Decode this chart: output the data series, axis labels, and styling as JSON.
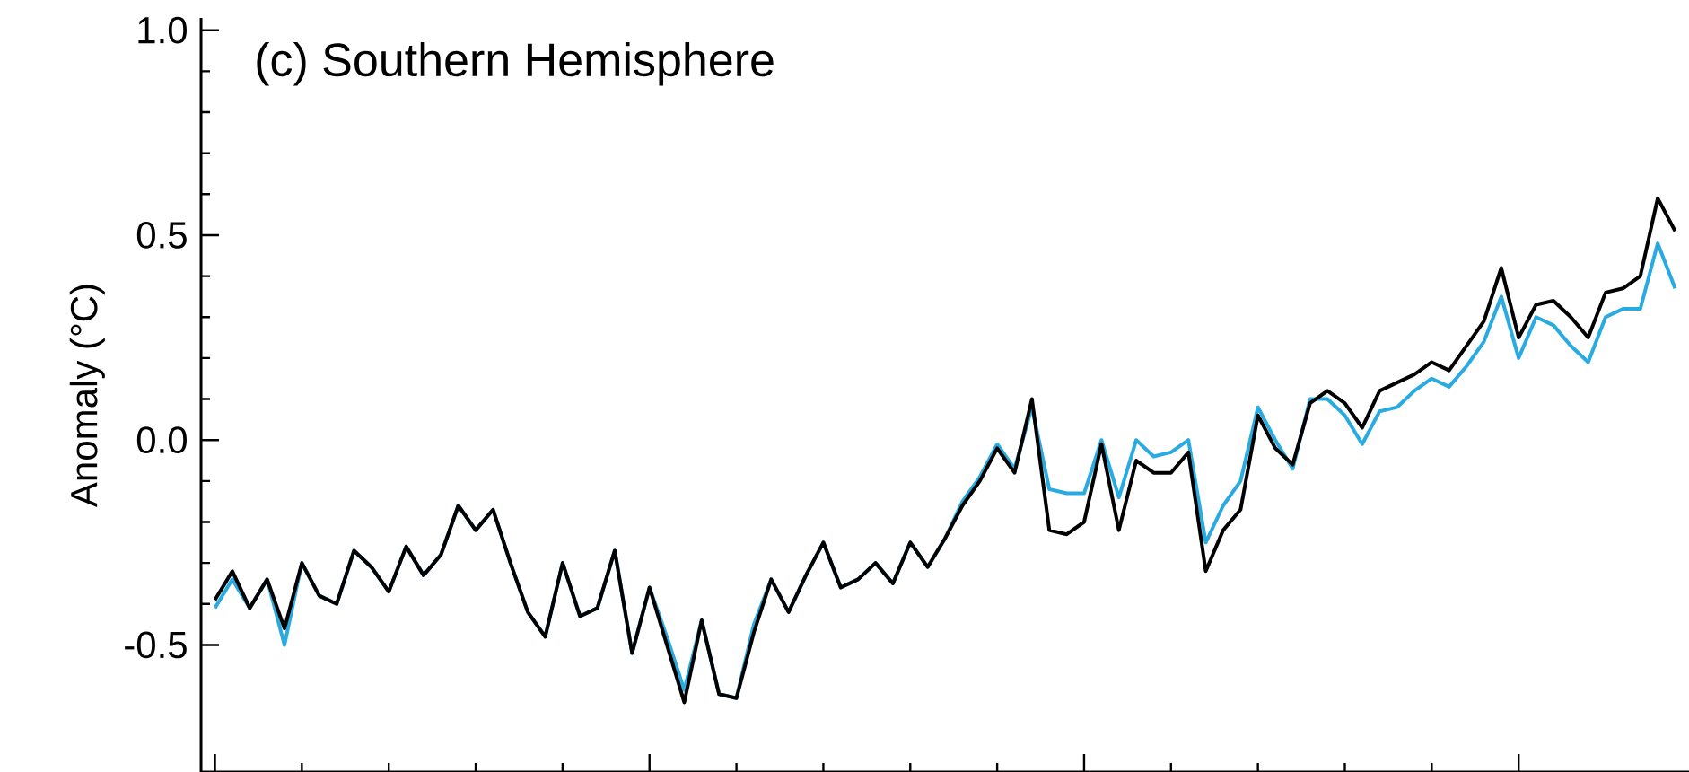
{
  "chart_data": {
    "type": "line",
    "title": "(c) Southern Hemisphere",
    "ylabel": "Anomaly (°C)",
    "categories": [
      null,
      null,
      null,
      null,
      null,
      null,
      null,
      null,
      null,
      null,
      null,
      null,
      null,
      null,
      null,
      null,
      null,
      null,
      null,
      null,
      null,
      null,
      null,
      null,
      null,
      null,
      null,
      null,
      null,
      null,
      null,
      null,
      null,
      null,
      null,
      null,
      null,
      null,
      null,
      null,
      null,
      null,
      null,
      null,
      null,
      null,
      null,
      null,
      null,
      null,
      null,
      null,
      null,
      null,
      null,
      null,
      null,
      null,
      null,
      null,
      null,
      null,
      null,
      null,
      null,
      null,
      null,
      null,
      null,
      null,
      null,
      null,
      null,
      null,
      null,
      null,
      null,
      null,
      null,
      null,
      null,
      null,
      null,
      null,
      null
    ],
    "ylim": [
      -0.81,
      1.03
    ],
    "yticks": [
      {
        "value": -0.5,
        "label": "-0.5"
      },
      {
        "value": 0,
        "label": "0.0"
      },
      {
        "value": 0.5,
        "label": "0.5"
      },
      {
        "value": 1.0,
        "label": "1.0"
      }
    ],
    "grid": false,
    "marker": "none",
    "line_style": "solid",
    "series": [
      {
        "color": "#29abe2",
        "values": [
          -0.41,
          -0.34,
          -0.41,
          -0.34,
          -0.5,
          -0.3,
          -0.38,
          -0.4,
          -0.27,
          -0.31,
          -0.37,
          -0.26,
          -0.33,
          -0.28,
          -0.16,
          -0.22,
          -0.17,
          -0.3,
          -0.42,
          -0.48,
          -0.3,
          -0.43,
          -0.41,
          -0.27,
          -0.52,
          -0.36,
          -0.48,
          -0.61,
          -0.44,
          -0.62,
          -0.63,
          -0.45,
          -0.34,
          -0.42,
          -0.33,
          -0.25,
          -0.36,
          -0.34,
          -0.3,
          -0.35,
          -0.25,
          -0.31,
          -0.24,
          -0.15,
          -0.09,
          -0.01,
          -0.07,
          0.08,
          -0.12,
          -0.13,
          -0.13,
          0.0,
          -0.14,
          0.0,
          -0.04,
          -0.03,
          0.0,
          -0.25,
          -0.16,
          -0.1,
          0.08,
          0.0,
          -0.07,
          0.1,
          0.1,
          0.06,
          -0.01,
          0.07,
          0.08,
          0.12,
          0.15,
          0.13,
          0.18,
          0.24,
          0.35,
          0.2,
          0.3,
          0.28,
          0.23,
          0.19,
          0.3,
          0.32,
          0.32,
          0.48,
          0.37
        ]
      },
      {
        "color": "#000000",
        "values": [
          -0.39,
          -0.32,
          -0.41,
          -0.34,
          -0.46,
          -0.3,
          -0.38,
          -0.4,
          -0.27,
          -0.31,
          -0.37,
          -0.26,
          -0.33,
          -0.28,
          -0.16,
          -0.22,
          -0.17,
          -0.3,
          -0.42,
          -0.48,
          -0.3,
          -0.43,
          -0.41,
          -0.27,
          -0.52,
          -0.36,
          -0.5,
          -0.64,
          -0.44,
          -0.62,
          -0.63,
          -0.47,
          -0.34,
          -0.42,
          -0.33,
          -0.25,
          -0.36,
          -0.34,
          -0.3,
          -0.35,
          -0.25,
          -0.31,
          -0.24,
          -0.16,
          -0.1,
          -0.02,
          -0.08,
          0.1,
          -0.22,
          -0.23,
          -0.2,
          -0.01,
          -0.22,
          -0.05,
          -0.08,
          -0.08,
          -0.03,
          -0.32,
          -0.22,
          -0.17,
          0.06,
          -0.02,
          -0.06,
          0.09,
          0.12,
          0.09,
          0.03,
          0.12,
          0.14,
          0.16,
          0.19,
          0.17,
          0.23,
          0.29,
          0.42,
          0.25,
          0.33,
          0.34,
          0.3,
          0.25,
          0.36,
          0.37,
          0.4,
          0.59,
          0.51
        ]
      }
    ]
  }
}
